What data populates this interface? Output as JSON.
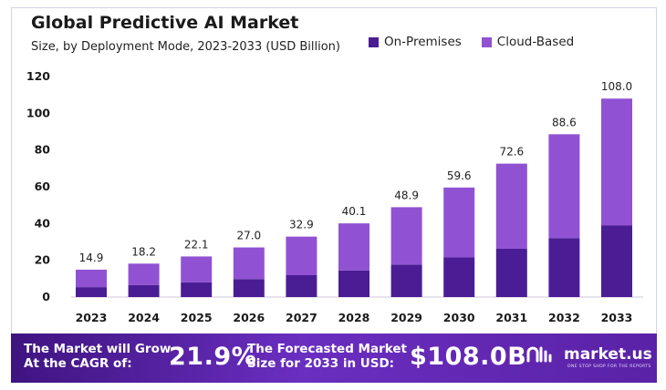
{
  "chart_data": {
    "type": "bar",
    "stacked": true,
    "title": "Global Predictive AI Market",
    "subtitle": "Size, by Deployment Mode, 2023-2033 (USD Billion)",
    "categories": [
      "2023",
      "2024",
      "2025",
      "2026",
      "2027",
      "2028",
      "2029",
      "2030",
      "2031",
      "2032",
      "2033"
    ],
    "series": [
      {
        "name": "On-Premises",
        "color": "#4b1d95",
        "values": [
          5.4,
          6.6,
          8.0,
          9.8,
          11.9,
          14.5,
          17.7,
          21.6,
          26.3,
          32.1,
          39.1
        ]
      },
      {
        "name": "Cloud-Based",
        "color": "#9052d3",
        "values": [
          9.5,
          11.6,
          14.1,
          17.2,
          21.0,
          25.6,
          31.2,
          38.0,
          46.3,
          56.5,
          68.9
        ]
      }
    ],
    "totals": [
      "14.9",
      "18.2",
      "22.1",
      "27.0",
      "32.9",
      "40.1",
      "48.9",
      "59.6",
      "72.6",
      "88.6",
      "108.0"
    ],
    "yticks": [
      0,
      20,
      40,
      60,
      80,
      100,
      120
    ],
    "ylim": [
      0,
      120
    ],
    "grid": false,
    "legend_position": "top-right"
  },
  "banner": {
    "cagr_label_line1": "The Market will Grow",
    "cagr_label_line2": "At the CAGR of:",
    "cagr_value": "21.9%",
    "forecast_label_line1": "The Forecasted Market",
    "forecast_label_line2": "Size for 2033 in USD:",
    "forecast_value": "$108.0B",
    "brand_name": "market.us",
    "brand_tagline": "ONE STOP SHOP FOR THE REPORTS"
  }
}
